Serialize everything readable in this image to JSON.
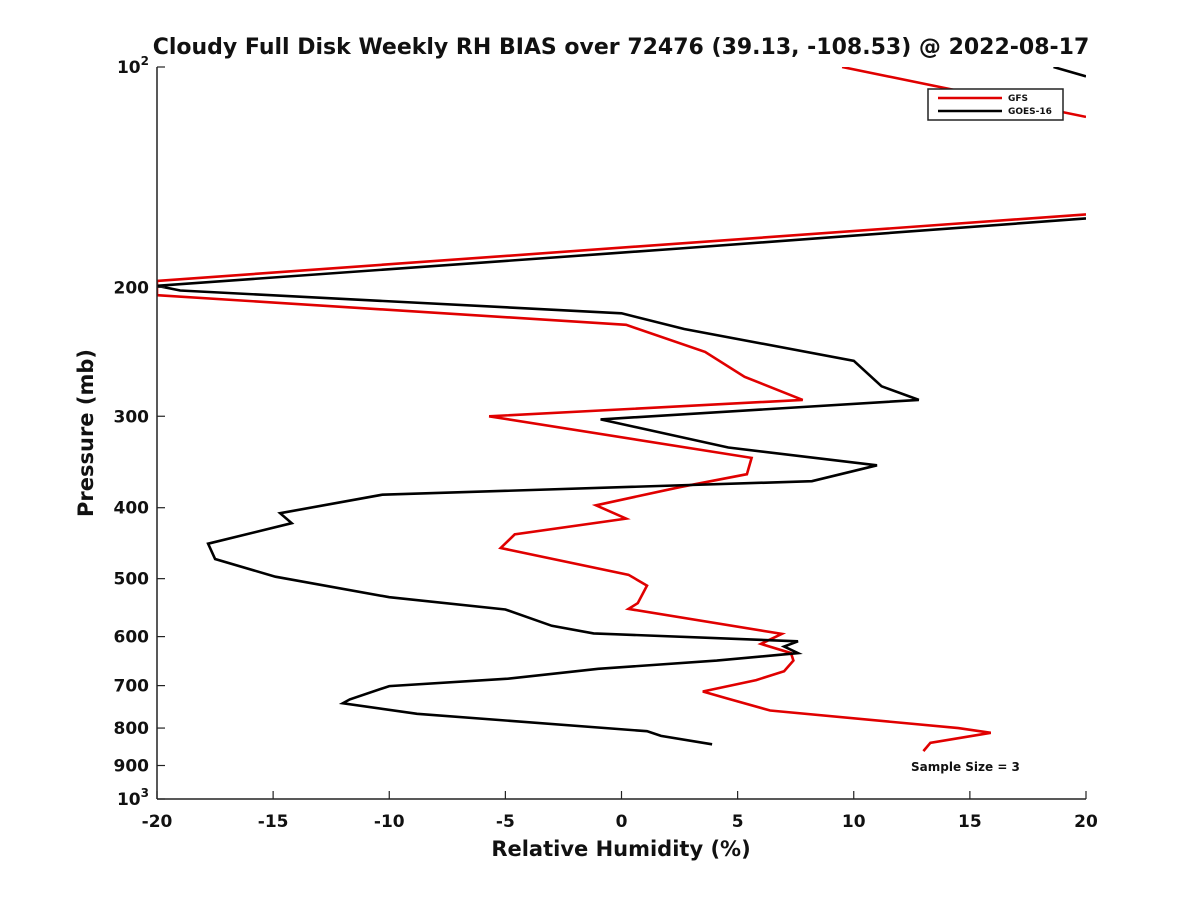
{
  "chart_data": {
    "type": "line",
    "title": "Cloudy Full Disk Weekly RH BIAS over 72476 (39.13, -108.53) @ 2022-08-17",
    "xlabel": "Relative Humidity (%)",
    "ylabel": "Pressure (mb)",
    "xlim": [
      -20,
      20
    ],
    "ylim": [
      1000,
      100
    ],
    "y_scale": "log",
    "y_reversed": true,
    "grid": false,
    "legend_position": "top-right",
    "x_ticks": [
      "-20",
      "-15",
      "-10",
      "-5",
      "0",
      "5",
      "10",
      "15",
      "20"
    ],
    "y_ticks": [
      {
        "value": 100,
        "base": "10",
        "exp": "2"
      },
      {
        "value": 200,
        "label": "200"
      },
      {
        "value": 300,
        "label": "300"
      },
      {
        "value": 400,
        "label": "400"
      },
      {
        "value": 500,
        "label": "500"
      },
      {
        "value": 600,
        "label": "600"
      },
      {
        "value": 700,
        "label": "700"
      },
      {
        "value": 800,
        "label": "800"
      },
      {
        "value": 900,
        "label": "900"
      },
      {
        "value": 1000,
        "base": "10",
        "exp": "3"
      }
    ],
    "annotation": "Sample Size = 3",
    "series": [
      {
        "name": "GFS",
        "color": "#e00000",
        "segments": [
          [
            [
              9.5,
              100
            ],
            [
              20,
              117
            ]
          ],
          [
            [
              20,
              159
            ],
            [
              -20,
              196
            ],
            [
              -20,
              205
            ],
            [
              0.2,
              225
            ],
            [
              3.6,
              245
            ],
            [
              5.3,
              265
            ],
            [
              7.8,
              285
            ],
            [
              -5.7,
              300
            ],
            [
              5.6,
              342
            ],
            [
              5.4,
              360
            ],
            [
              2.5,
              375
            ],
            [
              -1.1,
              397
            ],
            [
              0.2,
              414
            ],
            [
              -4.6,
              435
            ],
            [
              -5.2,
              454
            ],
            [
              0.3,
              494
            ],
            [
              1.1,
              511
            ],
            [
              0.7,
              540
            ],
            [
              0.3,
              550
            ],
            [
              6.9,
              595
            ],
            [
              6,
              614
            ],
            [
              7.3,
              632
            ],
            [
              7.4,
              647
            ],
            [
              7,
              669
            ],
            [
              5.8,
              688
            ],
            [
              3.5,
              713
            ],
            [
              4.5,
              728
            ],
            [
              6.4,
              757
            ],
            [
              14.5,
              800
            ],
            [
              15.9,
              812
            ],
            [
              13.3,
              838
            ],
            [
              13,
              860
            ]
          ]
        ]
      },
      {
        "name": "GOES-16",
        "color": "#000000",
        "segments": [
          [
            [
              18.6,
              100
            ],
            [
              20,
              103
            ]
          ],
          [
            [
              20,
              161
            ],
            [
              2.5,
              177
            ],
            [
              -20,
              199
            ],
            [
              -19,
              202
            ],
            [
              0,
              217
            ],
            [
              2.7,
              228
            ],
            [
              10,
              252
            ],
            [
              11.2,
              273
            ],
            [
              12.8,
              285
            ],
            [
              -0.9,
              303
            ],
            [
              4.6,
              331
            ],
            [
              11,
              350
            ],
            [
              8.2,
              368
            ],
            [
              -10.3,
              384
            ],
            [
              -14.7,
              407
            ],
            [
              -14.2,
              420
            ],
            [
              -17.8,
              448
            ],
            [
              -17.5,
              470
            ],
            [
              -14.9,
              497
            ],
            [
              -10,
              530
            ],
            [
              -5,
              551
            ],
            [
              -3,
              580
            ],
            [
              -1.2,
              594
            ],
            [
              7.6,
              609
            ],
            [
              7,
              619
            ],
            [
              7.6,
              632
            ],
            [
              4.1,
              647
            ],
            [
              -1,
              664
            ],
            [
              -4.9,
              685
            ],
            [
              -10,
              701
            ],
            [
              -11.7,
              731
            ],
            [
              -12,
              740
            ],
            [
              -8.8,
              765
            ],
            [
              1.1,
              808
            ],
            [
              1.7,
              820
            ],
            [
              3.9,
              842
            ]
          ]
        ]
      }
    ]
  }
}
